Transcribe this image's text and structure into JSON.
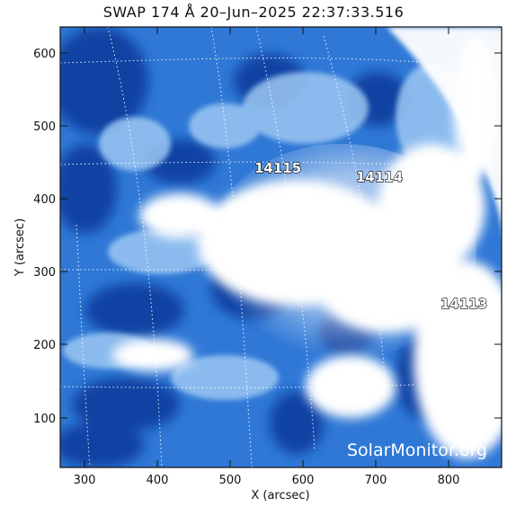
{
  "title": "SWAP 174 Å 20–Jun–2025 22:37:33.516",
  "axes": {
    "x_title": "X (arcsec)",
    "y_title": "Y (arcsec)",
    "x_ticks": [
      "300",
      "400",
      "500",
      "600",
      "700",
      "800"
    ],
    "y_ticks": [
      "100",
      "200",
      "300",
      "400",
      "500",
      "600"
    ],
    "x_range": [
      273,
      878
    ],
    "y_range": [
      33,
      637
    ]
  },
  "regions": [
    {
      "label": "14115"
    },
    {
      "label": "14114"
    },
    {
      "label": "14113"
    }
  ],
  "watermark": "SolarMonitor.org",
  "colors": {
    "deep": "#0a3d9e",
    "mid": "#2f78d6",
    "light": "#9cc7f3",
    "bright": "#ffffff",
    "frame": "#111111"
  }
}
